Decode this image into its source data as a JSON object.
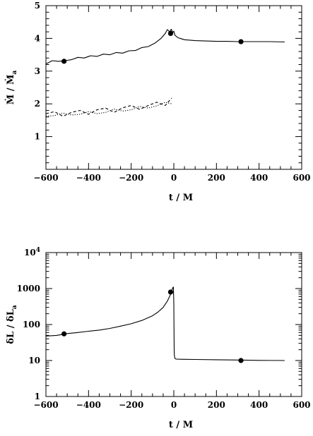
{
  "chart_data": [
    {
      "type": "line",
      "title": "",
      "xlabel": "t  /  M",
      "ylabel": "Ṁ  /  Ṁa",
      "ylabel_parts": {
        "a": "Ṁ",
        "sep": "/",
        "b": "Ṁ",
        "b_sub": "a"
      },
      "xlim": [
        -600,
        600
      ],
      "ylim": [
        0,
        5
      ],
      "xticks": [
        -600,
        -400,
        -200,
        0,
        200,
        400,
        600
      ],
      "yticks": [
        1,
        2,
        3,
        4,
        5
      ],
      "grid": false,
      "legend": "none",
      "series": [
        {
          "style": "solid",
          "x": [
            -600,
            -570,
            -540,
            -510,
            -480,
            -450,
            -420,
            -390,
            -360,
            -330,
            -300,
            -270,
            -240,
            -210,
            -180,
            -150,
            -120,
            -90,
            -60,
            -40,
            -30,
            -20,
            -12,
            -5,
            0,
            5,
            20,
            50,
            100,
            150,
            200,
            250,
            300,
            350,
            400,
            450,
            520
          ],
          "y": [
            3.22,
            3.32,
            3.3,
            3.32,
            3.35,
            3.42,
            3.4,
            3.47,
            3.45,
            3.52,
            3.5,
            3.57,
            3.55,
            3.62,
            3.63,
            3.72,
            3.75,
            3.85,
            4.0,
            4.15,
            4.27,
            4.2,
            4.28,
            4.18,
            4.22,
            4.1,
            4.02,
            3.96,
            3.93,
            3.92,
            3.91,
            3.91,
            3.9,
            3.9,
            3.9,
            3.9,
            3.89
          ]
        },
        {
          "style": "dashed",
          "x": [
            -600,
            -560,
            -520,
            -480,
            -440,
            -400,
            -360,
            -320,
            -280,
            -240,
            -200,
            -160,
            -120,
            -80,
            -40,
            -10
          ],
          "y": [
            1.7,
            1.76,
            1.62,
            1.74,
            1.8,
            1.68,
            1.82,
            1.87,
            1.74,
            1.88,
            1.95,
            1.83,
            1.95,
            2.05,
            1.95,
            2.18
          ]
        },
        {
          "style": "dotted",
          "x": [
            -600,
            -560,
            -520,
            -480,
            -440,
            -400,
            -360,
            -320,
            -280,
            -240,
            -200,
            -160,
            -120,
            -80,
            -40,
            -10
          ],
          "y": [
            1.62,
            1.64,
            1.72,
            1.66,
            1.68,
            1.76,
            1.7,
            1.74,
            1.84,
            1.78,
            1.82,
            1.92,
            1.87,
            1.94,
            2.05,
            2.0
          ]
        }
      ],
      "markers": [
        {
          "x": -515,
          "y": 3.3
        },
        {
          "x": -15,
          "y": 4.15
        },
        {
          "x": 315,
          "y": 3.9
        }
      ]
    },
    {
      "type": "line",
      "title": "",
      "xlabel": "t  /  M",
      "ylabel": "δL  /  δLa",
      "ylabel_parts": {
        "a": "δL",
        "sep": "/",
        "b": "δL",
        "b_sub": "a"
      },
      "xlim": [
        -600,
        600
      ],
      "ylim": [
        1,
        10000
      ],
      "yscale": "log",
      "xticks": [
        -600,
        -400,
        -200,
        0,
        200,
        400,
        600
      ],
      "yticks": [
        {
          "value": 1,
          "label": "1"
        },
        {
          "value": 10,
          "label": "10"
        },
        {
          "value": 100,
          "label": "100"
        },
        {
          "value": 1000,
          "label": "1000"
        },
        {
          "value": 10000,
          "label": "10",
          "sup": "4"
        }
      ],
      "grid": false,
      "legend": "none",
      "series": [
        {
          "style": "solid",
          "x": [
            -600,
            -550,
            -500,
            -450,
            -400,
            -350,
            -300,
            -250,
            -200,
            -150,
            -100,
            -75,
            -50,
            -30,
            -20,
            -10,
            -5,
            -2,
            0,
            1,
            2,
            5,
            10,
            20,
            50,
            100,
            200,
            300,
            400,
            520
          ],
          "y": [
            48,
            50,
            56,
            60,
            65,
            70,
            78,
            90,
            105,
            130,
            175,
            220,
            300,
            450,
            600,
            850,
            1050,
            1100,
            400,
            60,
            15,
            11.5,
            11,
            10.9,
            10.8,
            10.7,
            10.5,
            10.3,
            10.1,
            10.0
          ]
        }
      ],
      "markers": [
        {
          "x": -515,
          "y": 55
        },
        {
          "x": -15,
          "y": 800
        },
        {
          "x": 315,
          "y": 10
        }
      ]
    }
  ]
}
